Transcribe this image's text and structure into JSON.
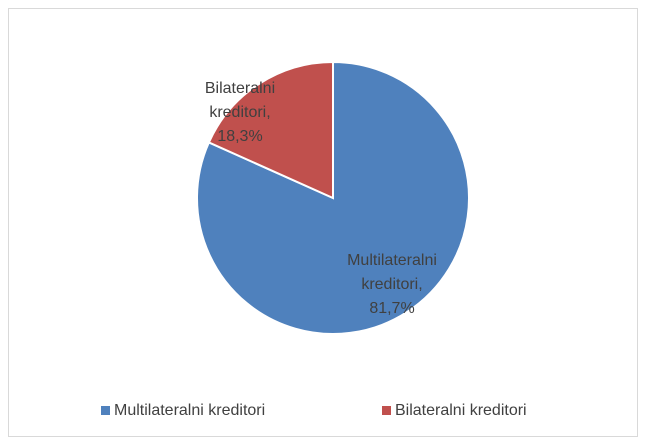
{
  "chart_data": {
    "type": "pie",
    "categories": [
      "Multilateralni kreditori",
      "Bilateralni kreditori"
    ],
    "values": [
      81.7,
      18.3
    ],
    "value_labels": [
      "Multilateralni kreditori, 81,7%",
      "Bilateralni kreditori, 18,3%"
    ],
    "colors": [
      "#4f81bd",
      "#c0504d"
    ],
    "legend": "bottom"
  }
}
